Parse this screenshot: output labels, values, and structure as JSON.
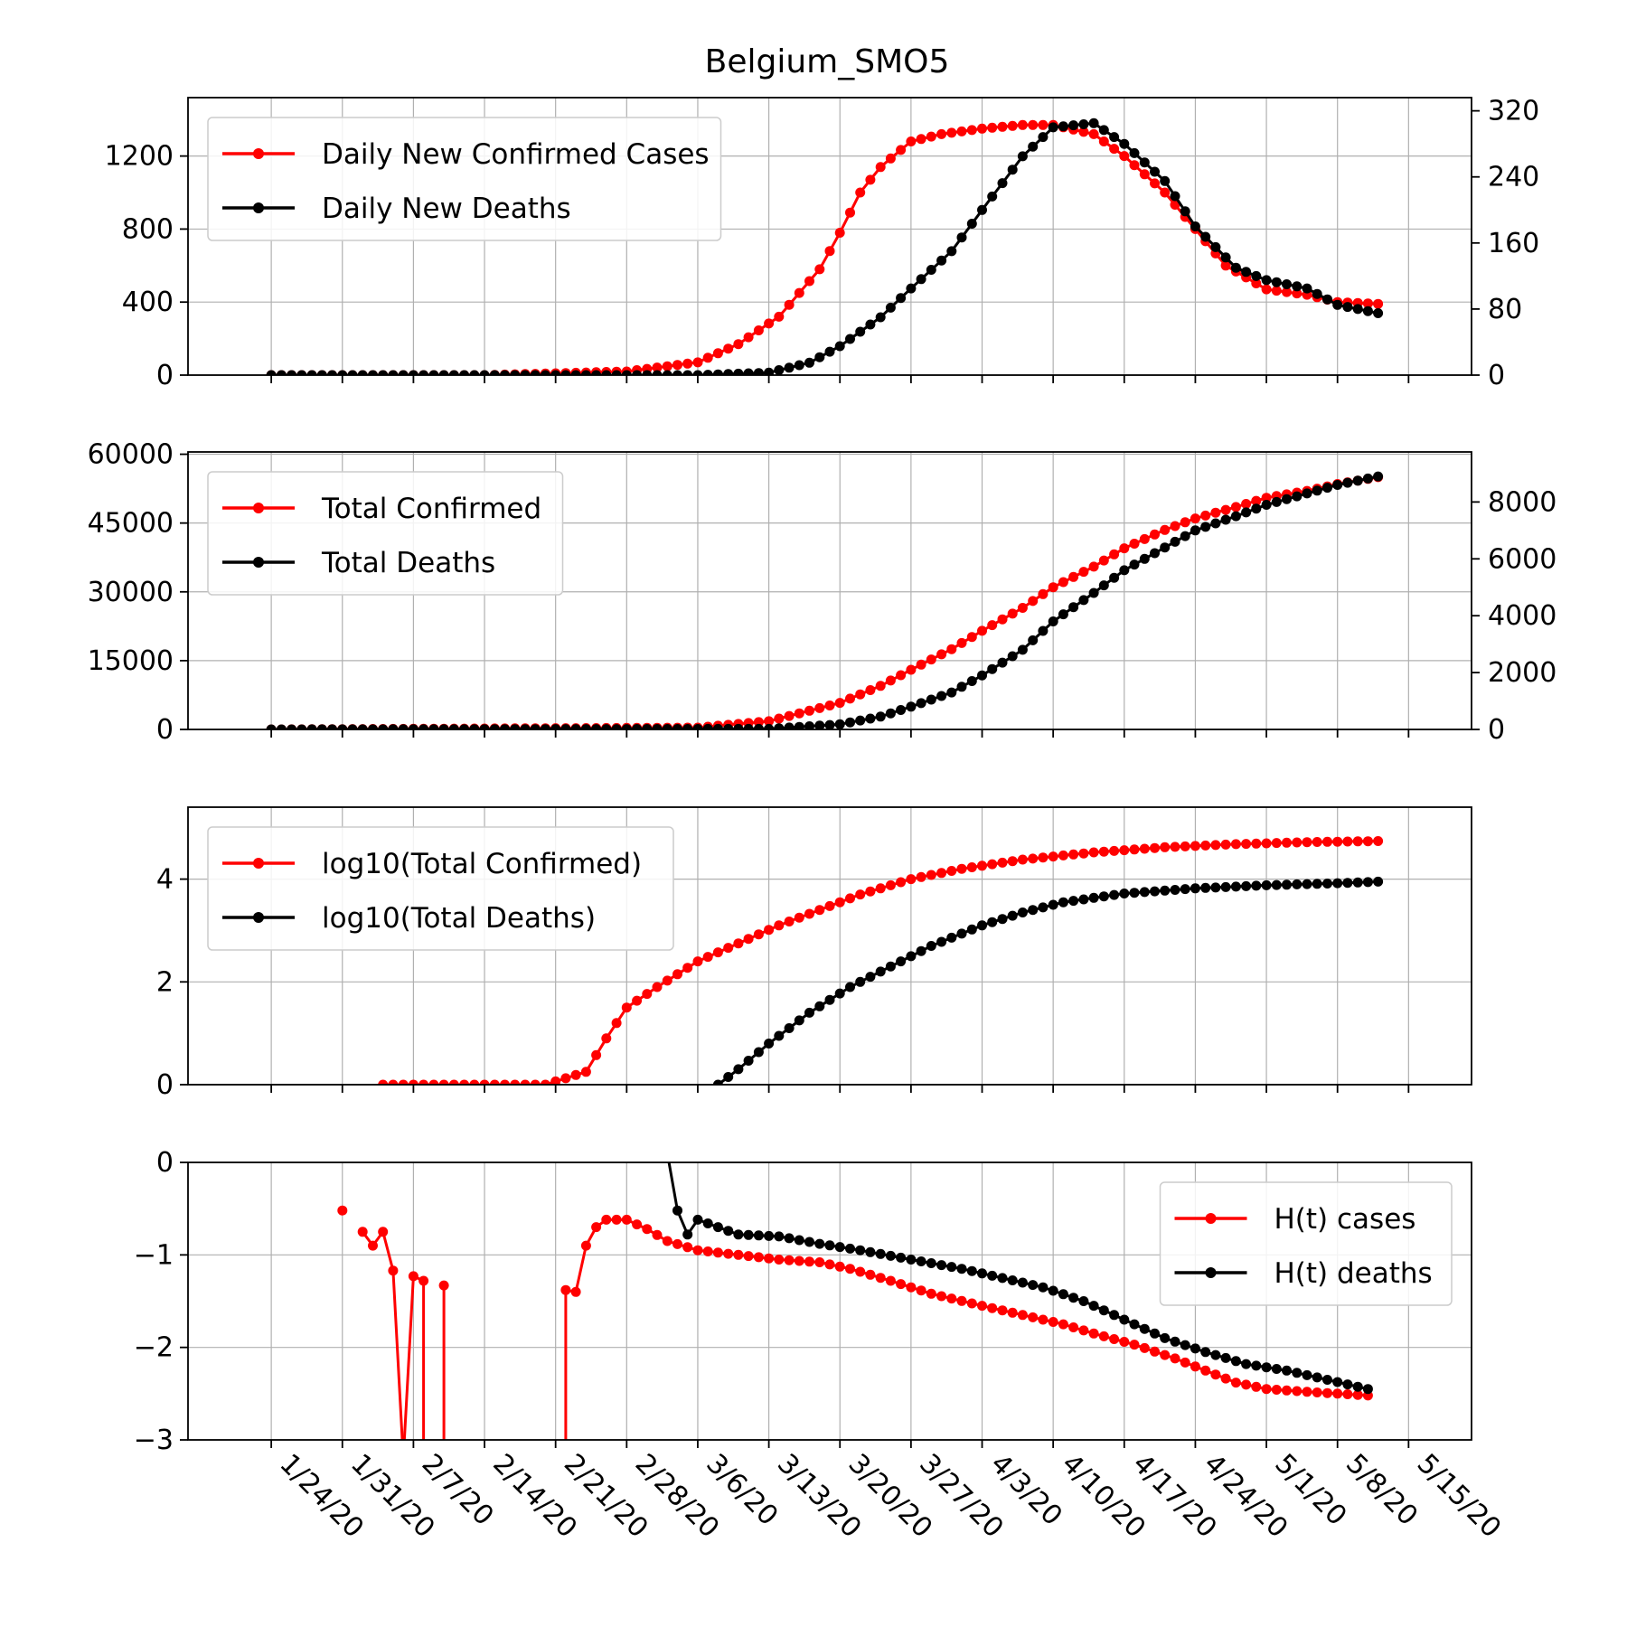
{
  "title": "Belgium_SMO5",
  "colors": {
    "cases": "#ff0000",
    "deaths": "#000000",
    "grid": "#b0b0b0"
  },
  "chart_data": [
    {
      "type": "line",
      "xlabel": "",
      "ylabel": "",
      "x_ticks": [
        "1/24/20",
        "1/31/20",
        "2/7/20",
        "2/14/20",
        "2/21/20",
        "2/28/20",
        "3/6/20",
        "3/13/20",
        "3/20/20",
        "3/27/20",
        "4/3/20",
        "4/10/20",
        "4/17/20",
        "4/24/20",
        "5/1/20",
        "5/8/20",
        "5/15/20"
      ],
      "ylim_left": [
        0,
        1520
      ],
      "yticks_left": [
        0,
        400,
        800,
        1200
      ],
      "ylim_right": [
        0,
        336
      ],
      "yticks_right": [
        0,
        80,
        160,
        240,
        320
      ],
      "legend": {
        "position": "upper left"
      },
      "grid": true,
      "series": [
        {
          "name": "Daily New Confirmed Cases",
          "axis": "left",
          "color": "#ff0000",
          "x": [
            "1/24/20",
            "2/14/20",
            "2/28/20",
            "3/6/20",
            "3/10/20",
            "3/14/20",
            "3/18/20",
            "3/20/20",
            "3/22/20",
            "3/24/20",
            "3/27/20",
            "3/30/20",
            "4/3/20",
            "4/7/20",
            "4/10/20",
            "4/14/20",
            "4/17/20",
            "4/21/20",
            "4/24/20",
            "4/27/20",
            "5/1/20",
            "5/5/20",
            "5/8/20",
            "5/12/20"
          ],
          "values": [
            0,
            0,
            20,
            70,
            170,
            320,
            580,
            780,
            1000,
            1140,
            1280,
            1320,
            1350,
            1370,
            1370,
            1320,
            1200,
            1000,
            800,
            600,
            470,
            440,
            400,
            390
          ]
        },
        {
          "name": "Daily New Deaths",
          "axis": "right",
          "color": "#000000",
          "x": [
            "1/24/20",
            "3/6/20",
            "3/13/20",
            "3/17/20",
            "3/20/20",
            "3/24/20",
            "3/27/20",
            "3/31/20",
            "4/3/20",
            "4/7/20",
            "4/10/20",
            "4/14/20",
            "4/17/20",
            "4/21/20",
            "4/24/20",
            "4/28/20",
            "5/1/20",
            "5/5/20",
            "5/8/20",
            "5/12/20"
          ],
          "values": [
            0,
            0,
            3,
            15,
            35,
            70,
            105,
            150,
            200,
            265,
            300,
            305,
            280,
            235,
            180,
            130,
            115,
            105,
            85,
            75
          ]
        }
      ]
    },
    {
      "type": "line",
      "xlabel": "",
      "ylabel": "",
      "ylim_left": [
        0,
        60500
      ],
      "yticks_left": [
        0,
        15000,
        30000,
        45000,
        60000
      ],
      "ylim_right": [
        0,
        9760
      ],
      "yticks_right": [
        0,
        2000,
        4000,
        6000,
        8000
      ],
      "legend": {
        "position": "upper left"
      },
      "grid": true,
      "series": [
        {
          "name": "Total Confirmed",
          "axis": "left",
          "color": "#ff0000",
          "x": [
            "1/24/20",
            "3/6/20",
            "3/13/20",
            "3/20/20",
            "3/24/20",
            "3/27/20",
            "3/31/20",
            "4/3/20",
            "4/7/20",
            "4/10/20",
            "4/14/20",
            "4/17/20",
            "4/21/20",
            "4/24/20",
            "4/28/20",
            "5/1/20",
            "5/5/20",
            "5/8/20",
            "5/12/20"
          ],
          "values": [
            0,
            400,
            1800,
            5800,
            9500,
            13000,
            17500,
            21500,
            26500,
            31000,
            35500,
            39500,
            43500,
            46000,
            48500,
            50500,
            52000,
            53500,
            55000
          ]
        },
        {
          "name": "Total Deaths",
          "axis": "right",
          "color": "#000000",
          "x": [
            "1/24/20",
            "3/13/20",
            "3/20/20",
            "3/24/20",
            "3/27/20",
            "3/31/20",
            "4/3/20",
            "4/7/20",
            "4/10/20",
            "4/14/20",
            "4/17/20",
            "4/21/20",
            "4/24/20",
            "4/28/20",
            "5/1/20",
            "5/5/20",
            "5/8/20",
            "5/12/20"
          ],
          "values": [
            0,
            20,
            180,
            450,
            800,
            1300,
            1900,
            2800,
            3800,
            4800,
            5600,
            6400,
            7000,
            7500,
            7900,
            8300,
            8600,
            8900
          ]
        }
      ]
    },
    {
      "type": "line",
      "xlabel": "",
      "ylabel": "",
      "ylim_left": [
        0,
        5.4
      ],
      "yticks_left": [
        0,
        2,
        4
      ],
      "legend": {
        "position": "upper left"
      },
      "grid": true,
      "series": [
        {
          "name": "log10(Total Confirmed)",
          "axis": "left",
          "color": "#ff0000",
          "x": [
            "2/4/20",
            "2/20/20",
            "2/24/20",
            "2/26/20",
            "2/28/20",
            "3/2/20",
            "3/6/20",
            "3/10/20",
            "3/14/20",
            "3/18/20",
            "3/22/20",
            "3/27/20",
            "4/1/20",
            "4/7/20",
            "4/14/20",
            "4/21/20",
            "4/28/20",
            "5/5/20",
            "5/12/20"
          ],
          "values": [
            0,
            0,
            0.25,
            0.9,
            1.5,
            1.9,
            2.4,
            2.75,
            3.1,
            3.4,
            3.7,
            4.0,
            4.2,
            4.38,
            4.52,
            4.62,
            4.68,
            4.72,
            4.74
          ]
        },
        {
          "name": "log10(Total Deaths)",
          "axis": "left",
          "color": "#000000",
          "x": [
            "3/8/20",
            "3/10/20",
            "3/13/20",
            "3/17/20",
            "3/21/20",
            "3/25/20",
            "3/29/20",
            "4/3/20",
            "4/7/20",
            "4/11/20",
            "4/17/20",
            "4/24/20",
            "5/1/20",
            "5/8/20",
            "5/12/20"
          ],
          "values": [
            0,
            0.3,
            0.8,
            1.4,
            1.9,
            2.3,
            2.7,
            3.1,
            3.35,
            3.55,
            3.72,
            3.82,
            3.88,
            3.92,
            3.95
          ]
        }
      ]
    },
    {
      "type": "line",
      "xlabel": "",
      "ylabel": "",
      "ylim_left": [
        -3,
        0
      ],
      "yticks_left": [
        0,
        -1,
        -2,
        -3
      ],
      "legend": {
        "position": "upper right"
      },
      "grid": true,
      "series": [
        {
          "name": "H(t) cases",
          "axis": "left",
          "color": "#ff0000",
          "segments": [
            {
              "x": [
                "1/31/20"
              ],
              "values": [
                -0.52
              ]
            },
            {
              "x": [
                "2/2/20",
                "2/3/20",
                "2/4/20",
                "2/5/20",
                "2/6/20"
              ],
              "values": [
                -0.75,
                -0.9,
                -0.75,
                -1.17,
                -3.2
              ]
            },
            {
              "x": [
                "2/6/20",
                "2/7/20",
                "2/8/20",
                "2/8/20"
              ],
              "values": [
                -3.2,
                -1.23,
                -1.28,
                -3.2
              ]
            },
            {
              "x": [
                "2/10/20",
                "2/10/20"
              ],
              "values": [
                -1.33,
                -3.2
              ]
            },
            {
              "x": [
                "2/22/20",
                "2/22/20",
                "2/23/20",
                "2/24/20",
                "2/25/20",
                "2/26/20",
                "2/28/20",
                "3/1/20",
                "3/3/20",
                "3/6/20",
                "3/10/20",
                "3/14/20",
                "3/18/20",
                "3/21/20",
                "3/25/20",
                "3/29/20",
                "4/3/20",
                "4/7/20",
                "4/11/20",
                "4/14/20",
                "4/18/20",
                "4/22/20",
                "4/25/20",
                "4/28/20",
                "5/1/20",
                "5/5/20",
                "5/8/20",
                "5/11/20"
              ],
              "values": [
                -3.2,
                -1.38,
                -1.4,
                -0.9,
                -0.7,
                -0.62,
                -0.62,
                -0.72,
                -0.85,
                -0.95,
                -1.0,
                -1.05,
                -1.08,
                -1.15,
                -1.28,
                -1.42,
                -1.55,
                -1.65,
                -1.75,
                -1.85,
                -1.97,
                -2.12,
                -2.25,
                -2.38,
                -2.45,
                -2.48,
                -2.5,
                -2.52
              ]
            }
          ]
        },
        {
          "name": "H(t) deaths",
          "axis": "left",
          "color": "#000000",
          "segments": [
            {
              "x": [
                "3/3/20",
                "3/4/20",
                "3/5/20",
                "3/6/20",
                "3/10/20",
                "3/14/20",
                "3/18/20",
                "3/22/20",
                "3/27/20",
                "4/1/20",
                "4/5/20",
                "4/9/20",
                "4/13/20",
                "4/17/20",
                "4/21/20",
                "4/25/20",
                "4/29/20",
                "5/3/20",
                "5/7/20",
                "5/11/20"
              ],
              "values": [
                0.1,
                -0.52,
                -0.78,
                -0.62,
                -0.78,
                -0.8,
                -0.88,
                -0.95,
                -1.05,
                -1.15,
                -1.25,
                -1.35,
                -1.5,
                -1.7,
                -1.9,
                -2.05,
                -2.18,
                -2.25,
                -2.35,
                -2.45
              ]
            }
          ]
        }
      ]
    }
  ]
}
